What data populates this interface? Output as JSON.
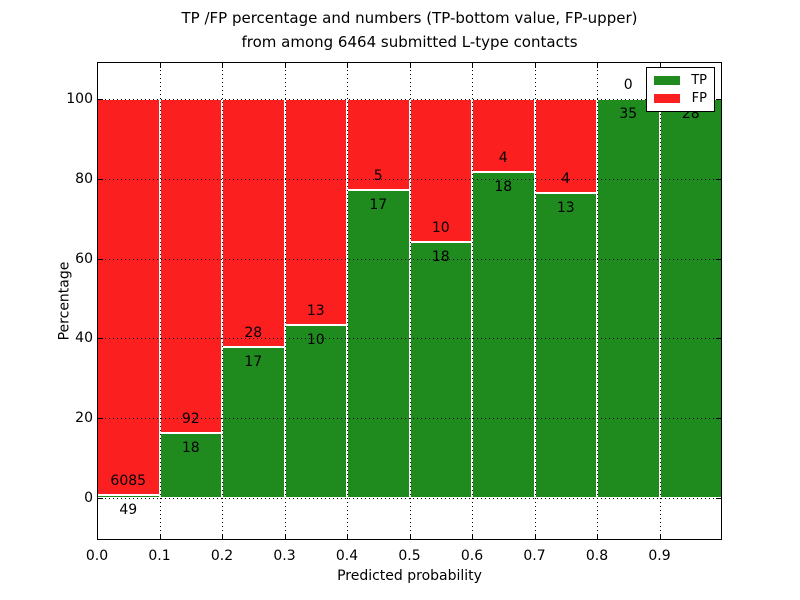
{
  "title": {
    "line1": "TP /FP percentage and numbers (TP-bottom value, FP-upper)",
    "line2": "from among 6464 submitted L-type contacts"
  },
  "chart_data": {
    "type": "bar",
    "stacked": true,
    "title": "TP /FP percentage and numbers (TP-bottom value, FP-upper) from among 6464 submitted L-type contacts",
    "xlabel": "Predicted probability",
    "ylabel": "Percentage",
    "total_contacts": 6464,
    "bin_width": 0.1,
    "categories": [
      "0.0-0.1",
      "0.1-0.2",
      "0.2-0.3",
      "0.3-0.4",
      "0.4-0.5",
      "0.5-0.6",
      "0.6-0.7",
      "0.7-0.8",
      "0.8-0.9",
      "0.9-1.0"
    ],
    "series": [
      {
        "name": "TP",
        "color": "#1f8b1f",
        "counts": [
          49,
          18,
          17,
          10,
          17,
          18,
          18,
          13,
          35,
          28
        ]
      },
      {
        "name": "FP",
        "color": "#fb1f1f",
        "counts": [
          6085,
          92,
          28,
          13,
          5,
          10,
          4,
          4,
          0,
          0
        ]
      }
    ],
    "tp_pct_of_bin": [
      0.8,
      16.4,
      37.8,
      43.5,
      77.3,
      64.3,
      81.8,
      76.5,
      100.0,
      100.0
    ],
    "tp_labels": [
      "49",
      "18",
      "17",
      "10",
      "17",
      "18",
      "18",
      "13",
      "35",
      "28"
    ],
    "fp_labels": [
      "6085",
      "92",
      "28",
      "13",
      "5",
      "10",
      "4",
      "4",
      "0",
      ""
    ],
    "x_tick_labels": [
      "0.0",
      "0.1",
      "0.2",
      "0.3",
      "0.4",
      "0.5",
      "0.6",
      "0.7",
      "0.8",
      "0.9"
    ],
    "y_tick_values": [
      0,
      20,
      40,
      60,
      80,
      100
    ],
    "xlim": [
      0.0,
      1.0
    ],
    "ylim": [
      -10.5,
      109.5
    ],
    "grid": "dotted black, drawn above bars",
    "bar_edge_color": "#ffffff",
    "legend": {
      "position": "upper right",
      "entries": [
        {
          "label": "TP",
          "color": "#1f8b1f"
        },
        {
          "label": "FP",
          "color": "#fb1f1f"
        }
      ]
    }
  }
}
